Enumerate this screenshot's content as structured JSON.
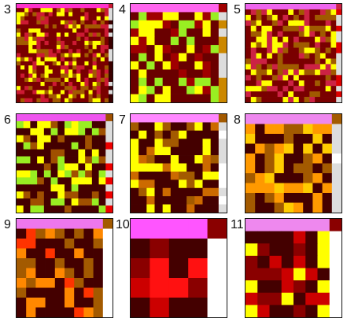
{
  "figure": {
    "panels": [
      {
        "label": "3",
        "scheme": [
          "#ff33cc",
          "#ffff00",
          "#7a0000",
          "#cc1a33",
          "#a35a00",
          "#3a0000",
          "#dddddd"
        ],
        "seed": 3
      },
      {
        "label": "4",
        "scheme": [
          "#ff66ee",
          "#ffff00",
          "#6a0000",
          "#a00000",
          "#99ee22",
          "#cc8800",
          "#dddddd"
        ],
        "seed": 4
      },
      {
        "label": "5",
        "scheme": [
          "#ee66ee",
          "#ffff00",
          "#7a0000",
          "#cc2244",
          "#a05a00",
          "#dd0000",
          "#dddddd"
        ],
        "seed": 5
      },
      {
        "label": "6",
        "scheme": [
          "#ee55ee",
          "#ffff00",
          "#440000",
          "#a05000",
          "#99ee22",
          "#ee0000",
          "#dddddd"
        ],
        "seed": 6
      },
      {
        "label": "7",
        "scheme": [
          "#ff88ff",
          "#ffff00",
          "#440000",
          "#a35a00",
          "#cc6a00",
          "#ffffff",
          "#dddddd"
        ],
        "seed": 7
      },
      {
        "label": "8",
        "scheme": [
          "#ee88ee",
          "#ff9900",
          "#440000",
          "#a35a00",
          "#ffcc00",
          "#ffffff",
          "#dddddd"
        ],
        "seed": 8
      },
      {
        "label": "9",
        "scheme": [
          "#ee77ee",
          "#ff8800",
          "#440000",
          "#a35a00",
          "#ff3300",
          "#ffffff",
          "#ffffff"
        ],
        "seed": 9
      },
      {
        "label": "10",
        "scheme": [
          "#ff55ff",
          "#ff1111",
          "#440000",
          "#8a0000",
          "#cc0000",
          "#ffffff",
          "#ffffff"
        ],
        "seed": 10
      },
      {
        "label": "11",
        "scheme": [
          "#ee88ee",
          "#ffff00",
          "#440000",
          "#8a0000",
          "#cc0000",
          "#ffffff",
          "#ffffff"
        ],
        "seed": 11
      }
    ]
  }
}
